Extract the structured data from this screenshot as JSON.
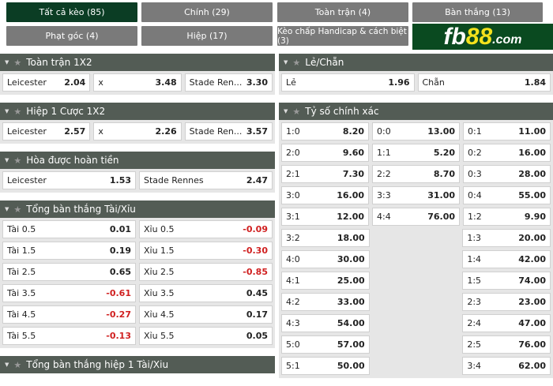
{
  "tabs": [
    {
      "label": "Tất cả kèo (85)",
      "active": true
    },
    {
      "label": "Chính (29)"
    },
    {
      "label": "Toàn trận (4)"
    },
    {
      "label": "Bàn thắng (13)"
    },
    {
      "label": "Phạt góc (4)"
    },
    {
      "label": "Hiệp (17)"
    },
    {
      "label": "Kèo chấp Handicap & cách biệt (3)"
    }
  ],
  "logo": {
    "text": "fb88.com"
  },
  "left": {
    "full_1x2": {
      "title": "Toàn trận 1X2",
      "cells": [
        {
          "l": "Leicester",
          "v": "2.04"
        },
        {
          "l": "x",
          "v": "3.48"
        },
        {
          "l": "Stade Ren...",
          "v": "3.30"
        }
      ]
    },
    "half_1x2": {
      "title": "Hiệp 1 Cược 1X2",
      "cells": [
        {
          "l": "Leicester",
          "v": "2.57"
        },
        {
          "l": "x",
          "v": "2.26"
        },
        {
          "l": "Stade Ren...",
          "v": "3.57"
        }
      ]
    },
    "dnb": {
      "title": "Hòa được hoàn tiền",
      "cells": [
        {
          "l": "Leicester",
          "v": "1.53"
        },
        {
          "l": "Stade Rennes",
          "v": "2.47"
        }
      ]
    },
    "ou": {
      "title": "Tổng bàn thắng Tài/Xỉu",
      "rows": [
        [
          {
            "l": "Tài 0.5",
            "v": "0.01"
          },
          {
            "l": "Xỉu 0.5",
            "v": "-0.09"
          }
        ],
        [
          {
            "l": "Tài 1.5",
            "v": "0.19"
          },
          {
            "l": "Xỉu 1.5",
            "v": "-0.30"
          }
        ],
        [
          {
            "l": "Tài 2.5",
            "v": "0.65"
          },
          {
            "l": "Xỉu 2.5",
            "v": "-0.85"
          }
        ],
        [
          {
            "l": "Tài 3.5",
            "v": "-0.61"
          },
          {
            "l": "Xỉu 3.5",
            "v": "0.45"
          }
        ],
        [
          {
            "l": "Tài 4.5",
            "v": "-0.27"
          },
          {
            "l": "Xỉu 4.5",
            "v": "0.17"
          }
        ],
        [
          {
            "l": "Tài 5.5",
            "v": "-0.13"
          },
          {
            "l": "Xỉu 5.5",
            "v": "0.05"
          }
        ]
      ]
    },
    "ou_half": {
      "title": "Tổng bàn thắng hiệp 1 Tài/Xiu"
    }
  },
  "right": {
    "oddeven": {
      "title": "Lẻ/Chẵn",
      "cells": [
        {
          "l": "Lẻ",
          "v": "1.96"
        },
        {
          "l": "Chẵn",
          "v": "1.84"
        }
      ]
    },
    "correct_score": {
      "title": "Tỷ số chính xác",
      "rows": [
        [
          {
            "l": "1:0",
            "v": "8.20"
          },
          {
            "l": "0:0",
            "v": "13.00"
          },
          {
            "l": "0:1",
            "v": "11.00"
          }
        ],
        [
          {
            "l": "2:0",
            "v": "9.60"
          },
          {
            "l": "1:1",
            "v": "5.20"
          },
          {
            "l": "0:2",
            "v": "16.00"
          }
        ],
        [
          {
            "l": "2:1",
            "v": "7.30"
          },
          {
            "l": "2:2",
            "v": "8.70"
          },
          {
            "l": "0:3",
            "v": "28.00"
          }
        ],
        [
          {
            "l": "3:0",
            "v": "16.00"
          },
          {
            "l": "3:3",
            "v": "31.00"
          },
          {
            "l": "0:4",
            "v": "55.00"
          }
        ],
        [
          {
            "l": "3:1",
            "v": "12.00"
          },
          {
            "l": "4:4",
            "v": "76.00"
          },
          {
            "l": "1:2",
            "v": "9.90"
          }
        ],
        [
          {
            "l": "3:2",
            "v": "18.00"
          },
          null,
          {
            "l": "1:3",
            "v": "20.00"
          }
        ],
        [
          {
            "l": "4:0",
            "v": "30.00"
          },
          null,
          {
            "l": "1:4",
            "v": "42.00"
          }
        ],
        [
          {
            "l": "4:1",
            "v": "25.00"
          },
          null,
          {
            "l": "1:5",
            "v": "74.00"
          }
        ],
        [
          {
            "l": "4:2",
            "v": "33.00"
          },
          null,
          {
            "l": "2:3",
            "v": "23.00"
          }
        ],
        [
          {
            "l": "4:3",
            "v": "54.00"
          },
          null,
          {
            "l": "2:4",
            "v": "47.00"
          }
        ],
        [
          {
            "l": "5:0",
            "v": "57.00"
          },
          null,
          {
            "l": "2:5",
            "v": "76.00"
          }
        ],
        [
          {
            "l": "5:1",
            "v": "50.00"
          },
          null,
          {
            "l": "3:4",
            "v": "62.00"
          }
        ]
      ]
    }
  },
  "colors": {
    "active_tab": "#0b3d24",
    "tab": "#7a7a7a",
    "header": "#535c55",
    "negative": "#d02020",
    "logo_bg": "#0a4a20",
    "logo_accent": "#f4e21c"
  }
}
